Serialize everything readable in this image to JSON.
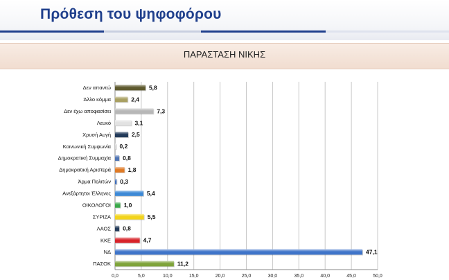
{
  "header": {
    "title": "Πρόθεση του ψηφοφόρου"
  },
  "chart_data": {
    "type": "bar",
    "orientation": "horizontal",
    "title": "ΠΑΡΑΣΤΑΣΗ ΝΙΚΗΣ",
    "categories": [
      "Δεν απαντώ",
      "Άλλο κόμμα",
      "Δεν έχω αποφασίσει",
      "Λευκό",
      "Χρυσή Αυγή",
      "Κοινωνική Συμφωνία",
      "Δημοκρατική Συμμαχία",
      "Δημοκρατική Αριστερά",
      "Άρμα Πολιτών",
      "Ανεξάρτητοι Έλληνες",
      "ΟΙΚΟΛΟΓΟΙ",
      "ΣΥΡΙΖΑ",
      "ΛΑΟΣ",
      "ΚΚΕ",
      "ΝΔ",
      "ΠΑΣΟΚ"
    ],
    "values": [
      5.8,
      2.4,
      7.3,
      3.1,
      2.5,
      0.2,
      0.8,
      1.8,
      0.3,
      5.4,
      1.0,
      5.5,
      0.8,
      4.7,
      47.1,
      11.2
    ],
    "value_labels": [
      "5,8",
      "2,4",
      "7,3",
      "3,1",
      "2,5",
      "0,2",
      "0,8",
      "1,8",
      "0,3",
      "5,4",
      "1,0",
      "5,5",
      "0,8",
      "4,7",
      "47,1",
      "11,2"
    ],
    "colors": [
      "#5e5a2e",
      "#a9a062",
      "#b7b7b7",
      "#e2e2e2",
      "#233a59",
      "#d8d8d8",
      "#4f74b3",
      "#e07a24",
      "#3d6dbd",
      "#3d89d6",
      "#3aa84a",
      "#f2d41c",
      "#233a59",
      "#d8232a",
      "#3f74c9",
      "#7ea33a"
    ],
    "xlim": [
      0,
      50
    ],
    "xticks": [
      "0,0",
      "5,0",
      "10,0",
      "15,0",
      "20,0",
      "25,0",
      "30,0",
      "35,0",
      "40,0",
      "45,0",
      "50,0"
    ],
    "grid": true,
    "xlabel": "",
    "ylabel": ""
  }
}
